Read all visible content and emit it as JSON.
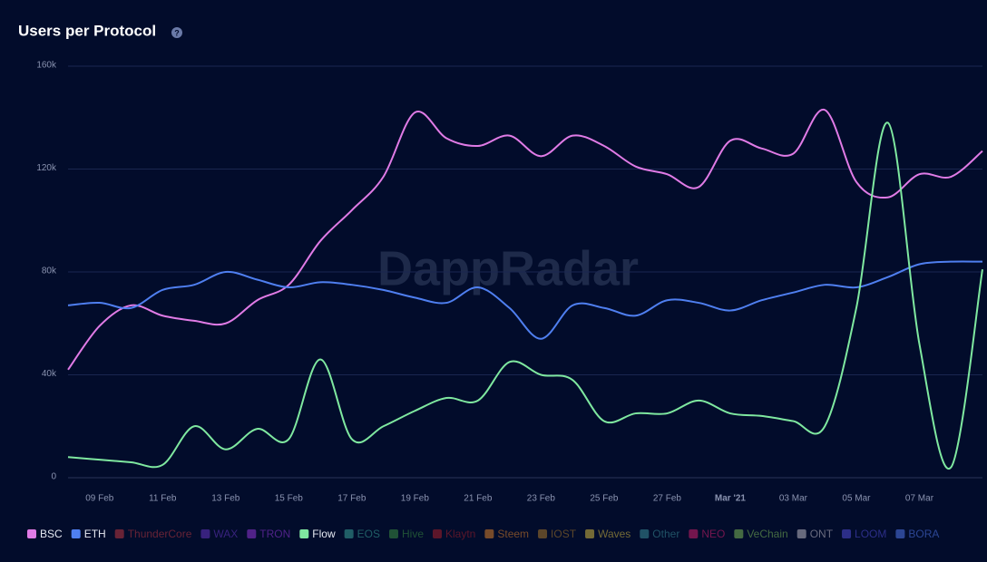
{
  "chart_data": {
    "type": "line",
    "title": "Users per Protocol",
    "watermark": "DappRadar",
    "categories": [
      null,
      "09 Feb",
      null,
      "11 Feb",
      null,
      "13 Feb",
      null,
      "15 Feb",
      null,
      "17 Feb",
      null,
      "19 Feb",
      null,
      "21 Feb",
      null,
      "23 Feb",
      null,
      "25 Feb",
      null,
      "27 Feb",
      null,
      "Mar '21",
      null,
      "03 Mar",
      null,
      "05 Mar",
      null,
      "07 Mar",
      null,
      null
    ],
    "ylim": [
      0,
      160000
    ],
    "yticks": [
      {
        "value": 0,
        "label": "0"
      },
      {
        "value": 40000,
        "label": "40k"
      },
      {
        "value": 80000,
        "label": "80k"
      },
      {
        "value": 120000,
        "label": "120k"
      },
      {
        "value": 160000,
        "label": "160k"
      }
    ],
    "grid": true,
    "legend": "bottom",
    "series": [
      {
        "name": "BSC",
        "color": "#e07be6",
        "values": [
          42000,
          59000,
          67000,
          63000,
          61000,
          60000,
          69000,
          75000,
          92000,
          104000,
          117000,
          142000,
          132000,
          129000,
          133000,
          125000,
          133000,
          129000,
          121000,
          118000,
          113000,
          131000,
          128000,
          126000,
          143000,
          115000,
          109000,
          118000,
          117000,
          127000
        ]
      },
      {
        "name": "ETH",
        "color": "#4f7ff0",
        "values": [
          67000,
          68000,
          66000,
          73000,
          75000,
          80000,
          77000,
          74000,
          76000,
          75000,
          73000,
          70000,
          68000,
          74000,
          66000,
          54000,
          67000,
          66000,
          63000,
          69000,
          68000,
          65000,
          69000,
          72000,
          75000,
          74000,
          78000,
          83000,
          84000,
          84000
        ]
      },
      {
        "name": "Flow",
        "color": "#7fe8a0",
        "values": [
          8000,
          7000,
          6000,
          5000,
          20000,
          11000,
          19000,
          15000,
          46000,
          15000,
          20000,
          26000,
          31000,
          30000,
          45000,
          40000,
          38000,
          22000,
          25000,
          25000,
          30000,
          25000,
          24000,
          22000,
          20000,
          66000,
          138000,
          52000,
          4000,
          81000
        ]
      }
    ],
    "legend_entries": [
      {
        "name": "BSC",
        "color": "#e07be6",
        "active": true
      },
      {
        "name": "ETH",
        "color": "#4f7ff0",
        "active": true
      },
      {
        "name": "ThunderCore",
        "color": "#8a2b3a",
        "active": false
      },
      {
        "name": "WAX",
        "color": "#4a2a9a",
        "active": false
      },
      {
        "name": "TRON",
        "color": "#6a2aa8",
        "active": false
      },
      {
        "name": "Flow",
        "color": "#7fe8a0",
        "active": true
      },
      {
        "name": "EOS",
        "color": "#2a7a7a",
        "active": false
      },
      {
        "name": "Hive",
        "color": "#2a6a3a",
        "active": false
      },
      {
        "name": "Klaytn",
        "color": "#7a1a2a",
        "active": false
      },
      {
        "name": "Steem",
        "color": "#a0602a",
        "active": false
      },
      {
        "name": "IOST",
        "color": "#7a5a2a",
        "active": false
      },
      {
        "name": "Waves",
        "color": "#9a8a3a",
        "active": false
      },
      {
        "name": "Other",
        "color": "#2a6a7a",
        "active": false
      },
      {
        "name": "NEO",
        "color": "#9a1a5a",
        "active": false
      },
      {
        "name": "VeChain",
        "color": "#5a8a4a",
        "active": false
      },
      {
        "name": "ONT",
        "color": "#8a8a9a",
        "active": false
      },
      {
        "name": "LOOM",
        "color": "#3a3aa8",
        "active": false
      },
      {
        "name": "BORA",
        "color": "#3a5ab8",
        "active": false
      }
    ]
  }
}
